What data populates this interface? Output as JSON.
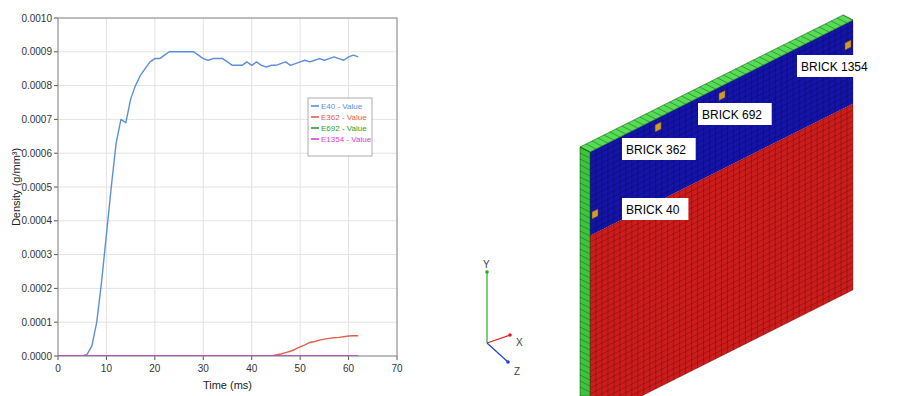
{
  "chart_data": {
    "type": "line",
    "x_label": "Time (ms)",
    "y_label": "Density (g/mm³)",
    "x": [
      0,
      1,
      2,
      3,
      4,
      5,
      6,
      7,
      8,
      9,
      10,
      11,
      12,
      13,
      14,
      15,
      16,
      17,
      18,
      19,
      20,
      21,
      22,
      23,
      24,
      25,
      26,
      27,
      28,
      29,
      30,
      31,
      32,
      33,
      34,
      35,
      36,
      37,
      38,
      39,
      40,
      41,
      42,
      43,
      44,
      45,
      46,
      47,
      48,
      49,
      50,
      51,
      52,
      53,
      54,
      55,
      56,
      57,
      58,
      59,
      60,
      61,
      62
    ],
    "series": [
      {
        "name": "E40 - Value",
        "color": "#5b8fd9",
        "values": [
          0,
          0,
          0,
          0,
          0,
          0,
          5e-06,
          3e-05,
          0.0001,
          0.00022,
          0.00036,
          0.0005,
          0.00063,
          0.0007,
          0.00069,
          0.00076,
          0.0008,
          0.00083,
          0.00085,
          0.00087,
          0.00088,
          0.00088,
          0.00089,
          0.0009,
          0.0009,
          0.0009,
          0.0009,
          0.0009,
          0.0009,
          0.00089,
          0.00088,
          0.000875,
          0.00088,
          0.00088,
          0.00088,
          0.00087,
          0.00086,
          0.00086,
          0.00086,
          0.00087,
          0.00086,
          0.00087,
          0.00086,
          0.000855,
          0.00086,
          0.00086,
          0.000865,
          0.00087,
          0.00086,
          0.000865,
          0.00087,
          0.000875,
          0.00087,
          0.000875,
          0.00088,
          0.000875,
          0.00088,
          0.000885,
          0.00088,
          0.000875,
          0.000885,
          0.00089,
          0.000885
        ]
      },
      {
        "name": "E362 - Value",
        "color": "#e0604f",
        "values": [
          0,
          0,
          0,
          0,
          0,
          0,
          0,
          0,
          0,
          0,
          0,
          0,
          0,
          0,
          0,
          0,
          0,
          0,
          0,
          0,
          0,
          0,
          0,
          0,
          0,
          0,
          0,
          0,
          0,
          0,
          0,
          0,
          0,
          0,
          0,
          0,
          0,
          0,
          0,
          0,
          0,
          0,
          0,
          0,
          0,
          3e-06,
          6e-06,
          1e-05,
          1.4e-05,
          2e-05,
          2.7e-05,
          3.3e-05,
          4e-05,
          4.3e-05,
          4.7e-05,
          5e-05,
          5.2e-05,
          5.4e-05,
          5.5e-05,
          5.7e-05,
          5.9e-05,
          6e-05,
          6e-05
        ]
      },
      {
        "name": "E692 - Value",
        "color": "#2ca02c",
        "values": [
          0,
          0,
          0,
          0,
          0,
          0,
          0,
          0,
          0,
          0,
          0,
          0,
          0,
          0,
          0,
          0,
          0,
          0,
          0,
          0,
          0,
          0,
          0,
          0,
          0,
          0,
          0,
          0,
          0,
          0,
          0,
          0,
          0,
          0,
          0,
          0,
          0,
          0,
          0,
          0,
          0,
          0,
          0,
          0,
          0,
          0,
          0,
          0,
          0,
          0,
          0,
          0,
          0,
          0,
          0,
          0,
          0,
          0,
          0,
          0,
          0,
          0,
          0
        ]
      },
      {
        "name": "E1354 - Value",
        "color": "#d43fd4",
        "values": [
          0,
          0,
          0,
          0,
          0,
          0,
          0,
          0,
          0,
          0,
          0,
          0,
          0,
          0,
          0,
          0,
          0,
          0,
          0,
          0,
          0,
          0,
          0,
          0,
          0,
          0,
          0,
          0,
          0,
          0,
          0,
          0,
          0,
          0,
          0,
          0,
          0,
          0,
          0,
          0,
          0,
          0,
          0,
          0,
          0,
          0,
          0,
          0,
          0,
          0,
          0,
          0,
          0,
          0,
          0,
          0,
          0,
          0,
          0,
          0,
          0,
          0,
          0
        ]
      }
    ],
    "xlim": [
      0,
      70
    ],
    "xticks": [
      0,
      10,
      20,
      30,
      40,
      50,
      60,
      70
    ],
    "ylim": [
      0,
      0.001
    ],
    "yticks": [
      {
        "value": 0,
        "label": "0.0000"
      },
      {
        "value": 0.0001,
        "label": "0.0001"
      },
      {
        "value": 0.0002,
        "label": "0.0002"
      },
      {
        "value": 0.0003,
        "label": "0.0003"
      },
      {
        "value": 0.0004,
        "label": "0.0004"
      },
      {
        "value": 0.0005,
        "label": "0.0005"
      },
      {
        "value": 0.0006,
        "label": "0.0006"
      },
      {
        "value": 0.0007,
        "label": "0.0007"
      },
      {
        "value": 0.0008,
        "label": "0.0008"
      },
      {
        "value": 0.0009,
        "label": "0.0009"
      },
      {
        "value": 0.001,
        "label": "0.0010"
      }
    ],
    "grid": true,
    "legend": "right"
  },
  "diagram": {
    "labels": [
      "BRICK 40",
      "BRICK 362",
      "BRICK 692",
      "BRICK 1354"
    ],
    "axes": [
      "X",
      "Y",
      "Z"
    ]
  }
}
